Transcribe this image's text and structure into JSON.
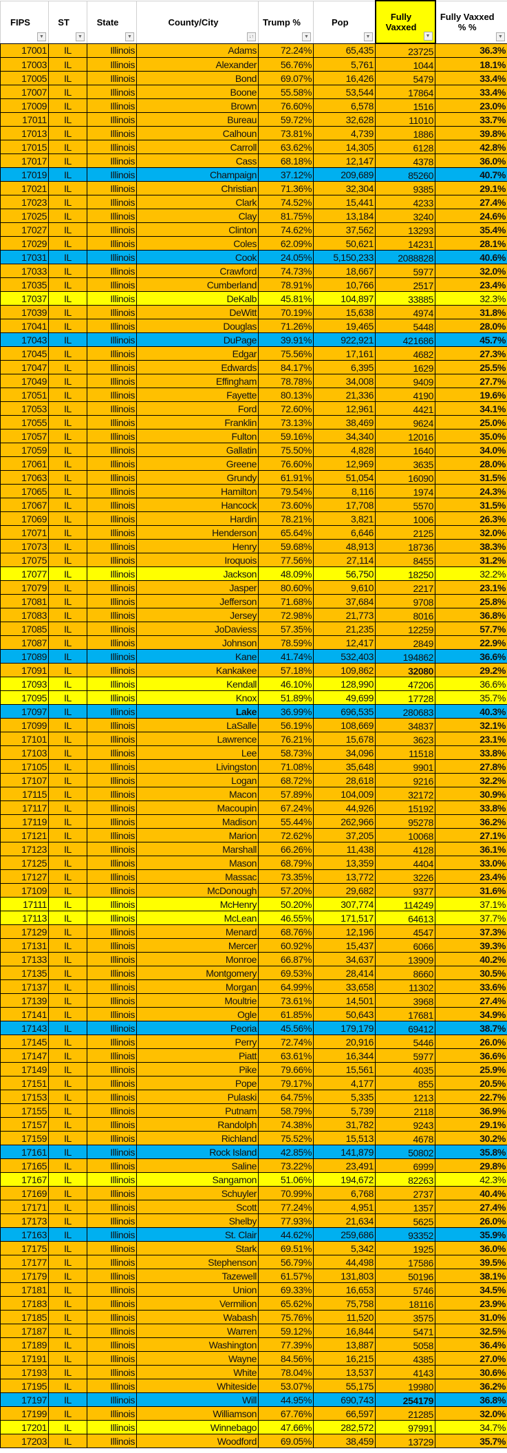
{
  "headers": [
    "FIPS",
    "ST",
    "State",
    "County/City",
    "Trump %",
    "Pop",
    "Fully Vaxxed",
    "Fully Vaxxed % %"
  ],
  "colors": {
    "o": "#FFC000",
    "b": "#00B0F0",
    "y": "#FFFF00"
  },
  "rows": [
    [
      "17001",
      "IL",
      "Illinois",
      "Adams",
      "72.24%",
      "65,435",
      "23725",
      "36.3%",
      "o"
    ],
    [
      "17003",
      "IL",
      "Illinois",
      "Alexander",
      "56.76%",
      "5,761",
      "1044",
      "18.1%",
      "o"
    ],
    [
      "17005",
      "IL",
      "Illinois",
      "Bond",
      "69.07%",
      "16,426",
      "5479",
      "33.4%",
      "o"
    ],
    [
      "17007",
      "IL",
      "Illinois",
      "Boone",
      "55.58%",
      "53,544",
      "17864",
      "33.4%",
      "o"
    ],
    [
      "17009",
      "IL",
      "Illinois",
      "Brown",
      "76.60%",
      "6,578",
      "1516",
      "23.0%",
      "o"
    ],
    [
      "17011",
      "IL",
      "Illinois",
      "Bureau",
      "59.72%",
      "32,628",
      "11010",
      "33.7%",
      "o"
    ],
    [
      "17013",
      "IL",
      "Illinois",
      "Calhoun",
      "73.81%",
      "4,739",
      "1886",
      "39.8%",
      "o"
    ],
    [
      "17015",
      "IL",
      "Illinois",
      "Carroll",
      "63.62%",
      "14,305",
      "6128",
      "42.8%",
      "o"
    ],
    [
      "17017",
      "IL",
      "Illinois",
      "Cass",
      "68.18%",
      "12,147",
      "4378",
      "36.0%",
      "o"
    ],
    [
      "17019",
      "IL",
      "Illinois",
      "Champaign",
      "37.12%",
      "209,689",
      "85260",
      "40.7%",
      "b"
    ],
    [
      "17021",
      "IL",
      "Illinois",
      "Christian",
      "71.36%",
      "32,304",
      "9385",
      "29.1%",
      "o"
    ],
    [
      "17023",
      "IL",
      "Illinois",
      "Clark",
      "74.52%",
      "15,441",
      "4233",
      "27.4%",
      "o"
    ],
    [
      "17025",
      "IL",
      "Illinois",
      "Clay",
      "81.75%",
      "13,184",
      "3240",
      "24.6%",
      "o"
    ],
    [
      "17027",
      "IL",
      "Illinois",
      "Clinton",
      "74.62%",
      "37,562",
      "13293",
      "35.4%",
      "o"
    ],
    [
      "17029",
      "IL",
      "Illinois",
      "Coles",
      "62.09%",
      "50,621",
      "14231",
      "28.1%",
      "o"
    ],
    [
      "17031",
      "IL",
      "Illinois",
      "Cook",
      "24.05%",
      "5,150,233",
      "2088828",
      "40.6%",
      "b"
    ],
    [
      "17033",
      "IL",
      "Illinois",
      "Crawford",
      "74.73%",
      "18,667",
      "5977",
      "32.0%",
      "o"
    ],
    [
      "17035",
      "IL",
      "Illinois",
      "Cumberland",
      "78.91%",
      "10,766",
      "2517",
      "23.4%",
      "o"
    ],
    [
      "17037",
      "IL",
      "Illinois",
      "DeKalb",
      "45.81%",
      "104,897",
      "33885",
      "32.3%",
      "y"
    ],
    [
      "17039",
      "IL",
      "Illinois",
      "DeWitt",
      "70.19%",
      "15,638",
      "4974",
      "31.8%",
      "o"
    ],
    [
      "17041",
      "IL",
      "Illinois",
      "Douglas",
      "71.26%",
      "19,465",
      "5448",
      "28.0%",
      "o"
    ],
    [
      "17043",
      "IL",
      "Illinois",
      "DuPage",
      "39.91%",
      "922,921",
      "421686",
      "45.7%",
      "b"
    ],
    [
      "17045",
      "IL",
      "Illinois",
      "Edgar",
      "75.56%",
      "17,161",
      "4682",
      "27.3%",
      "o"
    ],
    [
      "17047",
      "IL",
      "Illinois",
      "Edwards",
      "84.17%",
      "6,395",
      "1629",
      "25.5%",
      "o"
    ],
    [
      "17049",
      "IL",
      "Illinois",
      "Effingham",
      "78.78%",
      "34,008",
      "9409",
      "27.7%",
      "o"
    ],
    [
      "17051",
      "IL",
      "Illinois",
      "Fayette",
      "80.13%",
      "21,336",
      "4190",
      "19.6%",
      "o"
    ],
    [
      "17053",
      "IL",
      "Illinois",
      "Ford",
      "72.60%",
      "12,961",
      "4421",
      "34.1%",
      "o"
    ],
    [
      "17055",
      "IL",
      "Illinois",
      "Franklin",
      "73.13%",
      "38,469",
      "9624",
      "25.0%",
      "o"
    ],
    [
      "17057",
      "IL",
      "Illinois",
      "Fulton",
      "59.16%",
      "34,340",
      "12016",
      "35.0%",
      "o"
    ],
    [
      "17059",
      "IL",
      "Illinois",
      "Gallatin",
      "75.50%",
      "4,828",
      "1640",
      "34.0%",
      "o"
    ],
    [
      "17061",
      "IL",
      "Illinois",
      "Greene",
      "76.60%",
      "12,969",
      "3635",
      "28.0%",
      "o"
    ],
    [
      "17063",
      "IL",
      "Illinois",
      "Grundy",
      "61.91%",
      "51,054",
      "16090",
      "31.5%",
      "o"
    ],
    [
      "17065",
      "IL",
      "Illinois",
      "Hamilton",
      "79.54%",
      "8,116",
      "1974",
      "24.3%",
      "o"
    ],
    [
      "17067",
      "IL",
      "Illinois",
      "Hancock",
      "73.60%",
      "17,708",
      "5570",
      "31.5%",
      "o"
    ],
    [
      "17069",
      "IL",
      "Illinois",
      "Hardin",
      "78.21%",
      "3,821",
      "1006",
      "26.3%",
      "o"
    ],
    [
      "17071",
      "IL",
      "Illinois",
      "Henderson",
      "65.64%",
      "6,646",
      "2125",
      "32.0%",
      "o"
    ],
    [
      "17073",
      "IL",
      "Illinois",
      "Henry",
      "59.68%",
      "48,913",
      "18736",
      "38.3%",
      "o"
    ],
    [
      "17075",
      "IL",
      "Illinois",
      "Iroquois",
      "77.56%",
      "27,114",
      "8455",
      "31.2%",
      "o"
    ],
    [
      "17077",
      "IL",
      "Illinois",
      "Jackson",
      "48.09%",
      "56,750",
      "18250",
      "32.2%",
      "y"
    ],
    [
      "17079",
      "IL",
      "Illinois",
      "Jasper",
      "80.60%",
      "9,610",
      "2217",
      "23.1%",
      "o"
    ],
    [
      "17081",
      "IL",
      "Illinois",
      "Jefferson",
      "71.68%",
      "37,684",
      "9708",
      "25.8%",
      "o"
    ],
    [
      "17083",
      "IL",
      "Illinois",
      "Jersey",
      "72.98%",
      "21,773",
      "8016",
      "36.8%",
      "o"
    ],
    [
      "17085",
      "IL",
      "Illinois",
      "JoDaviess",
      "57.35%",
      "21,235",
      "12259",
      "57.7%",
      "o"
    ],
    [
      "17087",
      "IL",
      "Illinois",
      "Johnson",
      "78.59%",
      "12,417",
      "2849",
      "22.9%",
      "o"
    ],
    [
      "17089",
      "IL",
      "Illinois",
      "Kane",
      "41.74%",
      "532,403",
      "194862",
      "36.6%",
      "b"
    ],
    [
      "17091",
      "IL",
      "Illinois",
      "Kankakee",
      "57.18%",
      "109,862",
      "32080",
      "29.2%",
      "o"
    ],
    [
      "17093",
      "IL",
      "Illinois",
      "Kendall",
      "46.10%",
      "128,990",
      "47206",
      "36.6%",
      "y"
    ],
    [
      "17095",
      "IL",
      "Illinois",
      "Knox",
      "51.89%",
      "49,699",
      "17728",
      "35.7%",
      "y"
    ],
    [
      "17097",
      "IL",
      "Illinois",
      "Lake",
      "36.99%",
      "696,535",
      "280683",
      "40.3%",
      "b"
    ],
    [
      "17099",
      "IL",
      "Illinois",
      "LaSalle",
      "56.19%",
      "108,669",
      "34837",
      "32.1%",
      "o"
    ],
    [
      "17101",
      "IL",
      "Illinois",
      "Lawrence",
      "76.21%",
      "15,678",
      "3623",
      "23.1%",
      "o"
    ],
    [
      "17103",
      "IL",
      "Illinois",
      "Lee",
      "58.73%",
      "34,096",
      "11518",
      "33.8%",
      "o"
    ],
    [
      "17105",
      "IL",
      "Illinois",
      "Livingston",
      "71.08%",
      "35,648",
      "9901",
      "27.8%",
      "o"
    ],
    [
      "17107",
      "IL",
      "Illinois",
      "Logan",
      "68.72%",
      "28,618",
      "9216",
      "32.2%",
      "o"
    ],
    [
      "17115",
      "IL",
      "Illinois",
      "Macon",
      "57.89%",
      "104,009",
      "32172",
      "30.9%",
      "o"
    ],
    [
      "17117",
      "IL",
      "Illinois",
      "Macoupin",
      "67.24%",
      "44,926",
      "15192",
      "33.8%",
      "o"
    ],
    [
      "17119",
      "IL",
      "Illinois",
      "Madison",
      "55.44%",
      "262,966",
      "95278",
      "36.2%",
      "o"
    ],
    [
      "17121",
      "IL",
      "Illinois",
      "Marion",
      "72.62%",
      "37,205",
      "10068",
      "27.1%",
      "o"
    ],
    [
      "17123",
      "IL",
      "Illinois",
      "Marshall",
      "66.26%",
      "11,438",
      "4128",
      "36.1%",
      "o"
    ],
    [
      "17125",
      "IL",
      "Illinois",
      "Mason",
      "68.79%",
      "13,359",
      "4404",
      "33.0%",
      "o"
    ],
    [
      "17127",
      "IL",
      "Illinois",
      "Massac",
      "73.35%",
      "13,772",
      "3226",
      "23.4%",
      "o"
    ],
    [
      "17109",
      "IL",
      "Illinois",
      "McDonough",
      "57.20%",
      "29,682",
      "9377",
      "31.6%",
      "o"
    ],
    [
      "17111",
      "IL",
      "Illinois",
      "McHenry",
      "50.20%",
      "307,774",
      "114249",
      "37.1%",
      "y"
    ],
    [
      "17113",
      "IL",
      "Illinois",
      "McLean",
      "46.55%",
      "171,517",
      "64613",
      "37.7%",
      "y"
    ],
    [
      "17129",
      "IL",
      "Illinois",
      "Menard",
      "68.76%",
      "12,196",
      "4547",
      "37.3%",
      "o"
    ],
    [
      "17131",
      "IL",
      "Illinois",
      "Mercer",
      "60.92%",
      "15,437",
      "6066",
      "39.3%",
      "o"
    ],
    [
      "17133",
      "IL",
      "Illinois",
      "Monroe",
      "66.87%",
      "34,637",
      "13909",
      "40.2%",
      "o"
    ],
    [
      "17135",
      "IL",
      "Illinois",
      "Montgomery",
      "69.53%",
      "28,414",
      "8660",
      "30.5%",
      "o"
    ],
    [
      "17137",
      "IL",
      "Illinois",
      "Morgan",
      "64.99%",
      "33,658",
      "11302",
      "33.6%",
      "o"
    ],
    [
      "17139",
      "IL",
      "Illinois",
      "Moultrie",
      "73.61%",
      "14,501",
      "3968",
      "27.4%",
      "o"
    ],
    [
      "17141",
      "IL",
      "Illinois",
      "Ogle",
      "61.85%",
      "50,643",
      "17681",
      "34.9%",
      "o"
    ],
    [
      "17143",
      "IL",
      "Illinois",
      "Peoria",
      "45.56%",
      "179,179",
      "69412",
      "38.7%",
      "b"
    ],
    [
      "17145",
      "IL",
      "Illinois",
      "Perry",
      "72.74%",
      "20,916",
      "5446",
      "26.0%",
      "o"
    ],
    [
      "17147",
      "IL",
      "Illinois",
      "Piatt",
      "63.61%",
      "16,344",
      "5977",
      "36.6%",
      "o"
    ],
    [
      "17149",
      "IL",
      "Illinois",
      "Pike",
      "79.66%",
      "15,561",
      "4035",
      "25.9%",
      "o"
    ],
    [
      "17151",
      "IL",
      "Illinois",
      "Pope",
      "79.17%",
      "4,177",
      "855",
      "20.5%",
      "o"
    ],
    [
      "17153",
      "IL",
      "Illinois",
      "Pulaski",
      "64.75%",
      "5,335",
      "1213",
      "22.7%",
      "o"
    ],
    [
      "17155",
      "IL",
      "Illinois",
      "Putnam",
      "58.79%",
      "5,739",
      "2118",
      "36.9%",
      "o"
    ],
    [
      "17157",
      "IL",
      "Illinois",
      "Randolph",
      "74.38%",
      "31,782",
      "9243",
      "29.1%",
      "o"
    ],
    [
      "17159",
      "IL",
      "Illinois",
      "Richland",
      "75.52%",
      "15,513",
      "4678",
      "30.2%",
      "o"
    ],
    [
      "17161",
      "IL",
      "Illinois",
      "Rock Island",
      "42.85%",
      "141,879",
      "50802",
      "35.8%",
      "b"
    ],
    [
      "17165",
      "IL",
      "Illinois",
      "Saline",
      "73.22%",
      "23,491",
      "6999",
      "29.8%",
      "o"
    ],
    [
      "17167",
      "IL",
      "Illinois",
      "Sangamon",
      "51.06%",
      "194,672",
      "82263",
      "42.3%",
      "y"
    ],
    [
      "17169",
      "IL",
      "Illinois",
      "Schuyler",
      "70.99%",
      "6,768",
      "2737",
      "40.4%",
      "o"
    ],
    [
      "17171",
      "IL",
      "Illinois",
      "Scott",
      "77.24%",
      "4,951",
      "1357",
      "27.4%",
      "o"
    ],
    [
      "17173",
      "IL",
      "Illinois",
      "Shelby",
      "77.93%",
      "21,634",
      "5625",
      "26.0%",
      "o"
    ],
    [
      "17163",
      "IL",
      "Illinois",
      "St. Clair",
      "44.62%",
      "259,686",
      "93352",
      "35.9%",
      "b"
    ],
    [
      "17175",
      "IL",
      "Illinois",
      "Stark",
      "69.51%",
      "5,342",
      "1925",
      "36.0%",
      "o"
    ],
    [
      "17177",
      "IL",
      "Illinois",
      "Stephenson",
      "56.79%",
      "44,498",
      "17586",
      "39.5%",
      "o"
    ],
    [
      "17179",
      "IL",
      "Illinois",
      "Tazewell",
      "61.57%",
      "131,803",
      "50196",
      "38.1%",
      "o"
    ],
    [
      "17181",
      "IL",
      "Illinois",
      "Union",
      "69.33%",
      "16,653",
      "5746",
      "34.5%",
      "o"
    ],
    [
      "17183",
      "IL",
      "Illinois",
      "Vermilion",
      "65.62%",
      "75,758",
      "18116",
      "23.9%",
      "o"
    ],
    [
      "17185",
      "IL",
      "Illinois",
      "Wabash",
      "75.76%",
      "11,520",
      "3575",
      "31.0%",
      "o"
    ],
    [
      "17187",
      "IL",
      "Illinois",
      "Warren",
      "59.12%",
      "16,844",
      "5471",
      "32.5%",
      "o"
    ],
    [
      "17189",
      "IL",
      "Illinois",
      "Washington",
      "77.39%",
      "13,887",
      "5058",
      "36.4%",
      "o"
    ],
    [
      "17191",
      "IL",
      "Illinois",
      "Wayne",
      "84.56%",
      "16,215",
      "4385",
      "27.0%",
      "o"
    ],
    [
      "17193",
      "IL",
      "Illinois",
      "White",
      "78.04%",
      "13,537",
      "4143",
      "30.6%",
      "o"
    ],
    [
      "17195",
      "IL",
      "Illinois",
      "Whiteside",
      "53.07%",
      "55,175",
      "19980",
      "36.2%",
      "o"
    ],
    [
      "17197",
      "IL",
      "Illinois",
      "Will",
      "44.95%",
      "690,743",
      "254179",
      "36.8%",
      "b"
    ],
    [
      "17199",
      "IL",
      "Illinois",
      "Williamson",
      "67.76%",
      "66,597",
      "21285",
      "32.0%",
      "o"
    ],
    [
      "17201",
      "IL",
      "Illinois",
      "Winnebago",
      "47.66%",
      "282,572",
      "97991",
      "34.7%",
      "y"
    ],
    [
      "17203",
      "IL",
      "Illinois",
      "Woodford",
      "69.05%",
      "38,459",
      "13729",
      "35.7%",
      "o"
    ]
  ]
}
